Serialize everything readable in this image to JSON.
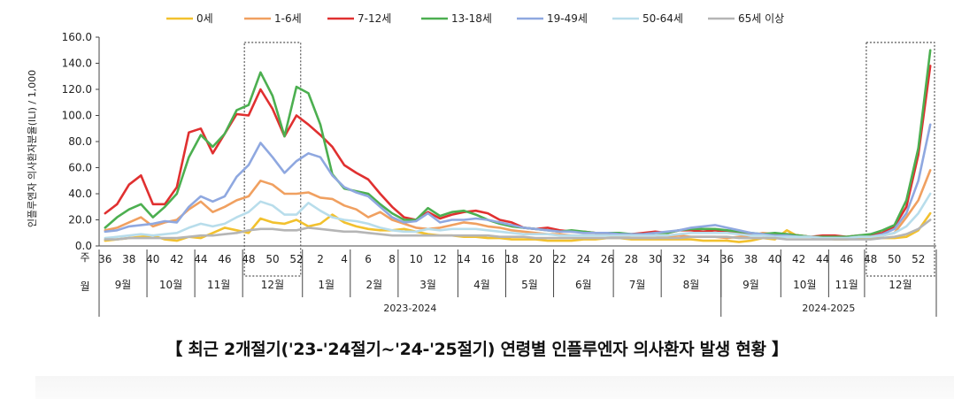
{
  "chart_data": {
    "type": "line",
    "title": "【 최근 2개절기('23-'24절기~'24-'25절기) 연령별 인플루엔자 의사환자 발생 현황 】",
    "ylabel": "인플루엔자 의사환자분율(ILI) / 1,000",
    "ylim": [
      0,
      160
    ],
    "yticks": [
      0,
      20,
      40,
      60,
      80,
      100,
      120,
      140,
      160
    ],
    "ytick_labels": [
      "0.0",
      "20.0",
      "40.0",
      "60.0",
      "80.0",
      "100.0",
      "120.0",
      "140.0",
      "160.0"
    ],
    "week_row_label": "주",
    "month_row_label": "월",
    "week_ticks": [
      "36",
      "38",
      "40",
      "42",
      "44",
      "46",
      "48",
      "50",
      "52",
      "2",
      "4",
      "6",
      "8",
      "10",
      "12",
      "14",
      "16",
      "18",
      "20",
      "22",
      "24",
      "26",
      "28",
      "30",
      "32",
      "34",
      "36",
      "38",
      "40",
      "42",
      "44",
      "46",
      "48",
      "50",
      "52"
    ],
    "months": [
      "9월",
      "10월",
      "11월",
      "12월",
      "1월",
      "2월",
      "3월",
      "4월",
      "5월",
      "6월",
      "7월",
      "8월",
      "9월",
      "10월",
      "11월",
      "12월"
    ],
    "seasons": [
      "2023-2024",
      "2024-2025"
    ],
    "highlight_boxes": [
      {
        "label": "12월",
        "from_week_index": 12,
        "to_week_index": 16
      },
      {
        "label": "12월",
        "from_week_index": 64,
        "to_week_index": 69
      }
    ],
    "x_week_count": 70,
    "series": [
      {
        "name": "0세",
        "color": "#F2C12E",
        "values": [
          4,
          5,
          6,
          7,
          8,
          5,
          4,
          7,
          6,
          10,
          14,
          12,
          10,
          21,
          18,
          17,
          20,
          15,
          17,
          24,
          18,
          15,
          13,
          12,
          12,
          13,
          11,
          9,
          8,
          8,
          7,
          7,
          6,
          6,
          5,
          5,
          5,
          4,
          4,
          4,
          5,
          5,
          6,
          6,
          5,
          5,
          5,
          5,
          5,
          5,
          4,
          4,
          4,
          3,
          4,
          6,
          5,
          12,
          7,
          7,
          6,
          5,
          5,
          6,
          6,
          6,
          6,
          7,
          12,
          25
        ]
      },
      {
        "name": "1-6세",
        "color": "#F0A060",
        "values": [
          12,
          14,
          18,
          22,
          15,
          18,
          20,
          28,
          34,
          26,
          30,
          35,
          38,
          50,
          47,
          40,
          40,
          41,
          37,
          36,
          31,
          28,
          22,
          26,
          20,
          17,
          14,
          13,
          14,
          16,
          18,
          17,
          15,
          14,
          12,
          11,
          10,
          9,
          9,
          8,
          8,
          8,
          8,
          7,
          6,
          6,
          6,
          7,
          8,
          7,
          7,
          7,
          6,
          7,
          8,
          10,
          9,
          8,
          8,
          7,
          7,
          6,
          6,
          7,
          7,
          8,
          10,
          22,
          35,
          58
        ]
      },
      {
        "name": "7-12세",
        "color": "#E03030",
        "values": [
          25,
          32,
          47,
          54,
          32,
          32,
          45,
          87,
          90,
          71,
          86,
          101,
          100,
          120,
          105,
          84,
          100,
          93,
          85,
          76,
          62,
          56,
          51,
          40,
          30,
          22,
          20,
          26,
          21,
          24,
          26,
          27,
          25,
          20,
          18,
          14,
          13,
          14,
          12,
          11,
          11,
          10,
          10,
          9,
          9,
          10,
          11,
          10,
          12,
          12,
          11,
          12,
          11,
          10,
          9,
          8,
          8,
          9,
          8,
          7,
          8,
          8,
          7,
          8,
          8,
          10,
          15,
          30,
          70,
          138
        ]
      },
      {
        "name": "13-18세",
        "color": "#4CAF50",
        "values": [
          14,
          22,
          28,
          32,
          22,
          30,
          40,
          68,
          85,
          76,
          86,
          104,
          108,
          133,
          115,
          84,
          122,
          117,
          93,
          55,
          44,
          42,
          40,
          32,
          25,
          20,
          20,
          29,
          23,
          26,
          27,
          24,
          20,
          17,
          15,
          14,
          13,
          12,
          11,
          12,
          11,
          10,
          10,
          10,
          9,
          9,
          10,
          10,
          12,
          13,
          13,
          13,
          12,
          11,
          10,
          9,
          10,
          9,
          8,
          7,
          7,
          7,
          7,
          8,
          9,
          12,
          16,
          35,
          75,
          150
        ]
      },
      {
        "name": "19-49세",
        "color": "#8FA8E0",
        "values": [
          11,
          12,
          15,
          16,
          17,
          19,
          18,
          30,
          38,
          34,
          38,
          53,
          62,
          79,
          68,
          56,
          65,
          71,
          68,
          54,
          45,
          41,
          38,
          30,
          22,
          18,
          19,
          25,
          18,
          20,
          20,
          21,
          20,
          18,
          16,
          14,
          13,
          12,
          11,
          11,
          10,
          10,
          10,
          9,
          9,
          9,
          10,
          11,
          12,
          14,
          15,
          16,
          14,
          12,
          10,
          9,
          8,
          8,
          7,
          7,
          6,
          6,
          6,
          7,
          7,
          9,
          13,
          25,
          50,
          93
        ]
      },
      {
        "name": "50-64세",
        "color": "#B8DDEB",
        "values": [
          6,
          7,
          8,
          9,
          8,
          9,
          10,
          14,
          17,
          15,
          17,
          22,
          26,
          34,
          31,
          24,
          24,
          33,
          27,
          22,
          20,
          19,
          17,
          14,
          12,
          11,
          11,
          13,
          12,
          13,
          13,
          13,
          12,
          11,
          10,
          9,
          9,
          9,
          8,
          8,
          8,
          8,
          8,
          8,
          8,
          8,
          8,
          8,
          9,
          10,
          10,
          10,
          10,
          9,
          8,
          8,
          7,
          7,
          7,
          7,
          6,
          6,
          6,
          7,
          7,
          8,
          10,
          15,
          25,
          40
        ]
      },
      {
        "name": "65세 이상",
        "color": "#B5B5B5",
        "values": [
          5,
          5,
          6,
          6,
          6,
          6,
          6,
          7,
          8,
          8,
          9,
          10,
          12,
          13,
          13,
          12,
          12,
          14,
          13,
          12,
          11,
          11,
          10,
          9,
          8,
          8,
          8,
          8,
          8,
          8,
          8,
          8,
          8,
          7,
          7,
          7,
          6,
          6,
          6,
          6,
          6,
          6,
          6,
          6,
          6,
          6,
          6,
          6,
          6,
          7,
          7,
          7,
          7,
          6,
          6,
          6,
          6,
          5,
          5,
          5,
          5,
          5,
          5,
          5,
          5,
          6,
          7,
          9,
          13,
          20
        ]
      }
    ]
  }
}
